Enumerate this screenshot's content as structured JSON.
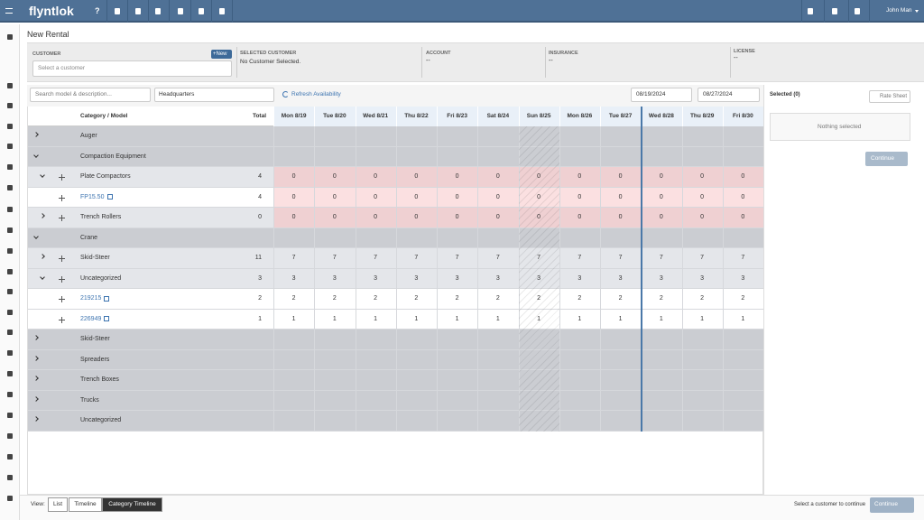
{
  "header": {
    "logo": "flyntlok",
    "help": "?",
    "user": "John Man"
  },
  "page_title": "New Rental",
  "customer_panel": {
    "customer_label": "CUSTOMER",
    "new_button": "+New",
    "customer_placeholder": "Select a customer",
    "selected_customer_label": "SELECTED CUSTOMER",
    "selected_customer_value": "No Customer Selected.",
    "account_label": "ACCOUNT",
    "account_value": "--",
    "insurance_label": "INSURANCE",
    "insurance_value": "--",
    "license_label": "LICENSE",
    "license_value": "--"
  },
  "toolbar": {
    "search_placeholder": "Search model & description...",
    "location": "Headquarters",
    "refresh": "Refresh Availability",
    "start_date": "08/19/2024",
    "end_date": "08/27/2024"
  },
  "table": {
    "columns": [
      "Category / Model",
      "Total"
    ],
    "days": [
      "Mon 8/19",
      "Tue 8/20",
      "Wed 8/21",
      "Thu 8/22",
      "Fri 8/23",
      "Sat 8/24",
      "Sun 8/25",
      "Mon 8/26",
      "Tue 8/27",
      "Wed 8/28",
      "Thu 8/29",
      "Fri 8/30"
    ],
    "rows": [
      {
        "kind": "category",
        "label": "Auger",
        "expanded": false
      },
      {
        "kind": "category",
        "label": "Compaction Equipment",
        "expanded": true
      },
      {
        "kind": "group",
        "label": "Plate Compactors",
        "expanded": true,
        "total": 4,
        "values": [
          0,
          0,
          0,
          0,
          0,
          0,
          0,
          0,
          0,
          0,
          0,
          0
        ]
      },
      {
        "kind": "item",
        "label": "FP15.50",
        "total": 4,
        "values": [
          0,
          0,
          0,
          0,
          0,
          0,
          0,
          0,
          0,
          0,
          0,
          0
        ]
      },
      {
        "kind": "group",
        "label": "Trench Rollers",
        "expanded": false,
        "total": 0,
        "values": [
          0,
          0,
          0,
          0,
          0,
          0,
          0,
          0,
          0,
          0,
          0,
          0
        ]
      },
      {
        "kind": "category",
        "label": "Crane",
        "expanded": true
      },
      {
        "kind": "group",
        "label": "Skid-Steer",
        "expanded": false,
        "total": 11,
        "values": [
          7,
          7,
          7,
          7,
          7,
          7,
          7,
          7,
          7,
          7,
          7,
          7
        ]
      },
      {
        "kind": "group",
        "label": "Uncategorized",
        "expanded": true,
        "total": 3,
        "values": [
          3,
          3,
          3,
          3,
          3,
          3,
          3,
          3,
          3,
          3,
          3,
          3
        ]
      },
      {
        "kind": "item",
        "label": "219215",
        "total": 2,
        "values": [
          2,
          2,
          2,
          2,
          2,
          2,
          2,
          2,
          2,
          2,
          2,
          2
        ]
      },
      {
        "kind": "item",
        "label": "226949",
        "total": 1,
        "values": [
          1,
          1,
          1,
          1,
          1,
          1,
          1,
          1,
          1,
          1,
          1,
          1
        ]
      },
      {
        "kind": "category",
        "label": "Skid-Steer",
        "expanded": false
      },
      {
        "kind": "category",
        "label": "Spreaders",
        "expanded": false
      },
      {
        "kind": "category",
        "label": "Trench Boxes",
        "expanded": false
      },
      {
        "kind": "category",
        "label": "Trucks",
        "expanded": false
      },
      {
        "kind": "category",
        "label": "Uncategorized",
        "expanded": false
      }
    ]
  },
  "selection": {
    "title": "Selected (0)",
    "rate_sheet": "Rate Sheet",
    "empty": "Nothing selected",
    "continue": "Continue"
  },
  "footer": {
    "view_label": "View:",
    "views": [
      "List",
      "Timeline",
      "Category Timeline"
    ],
    "active_view": 2,
    "hint": "Select a customer to continue",
    "continue": "Continue"
  }
}
